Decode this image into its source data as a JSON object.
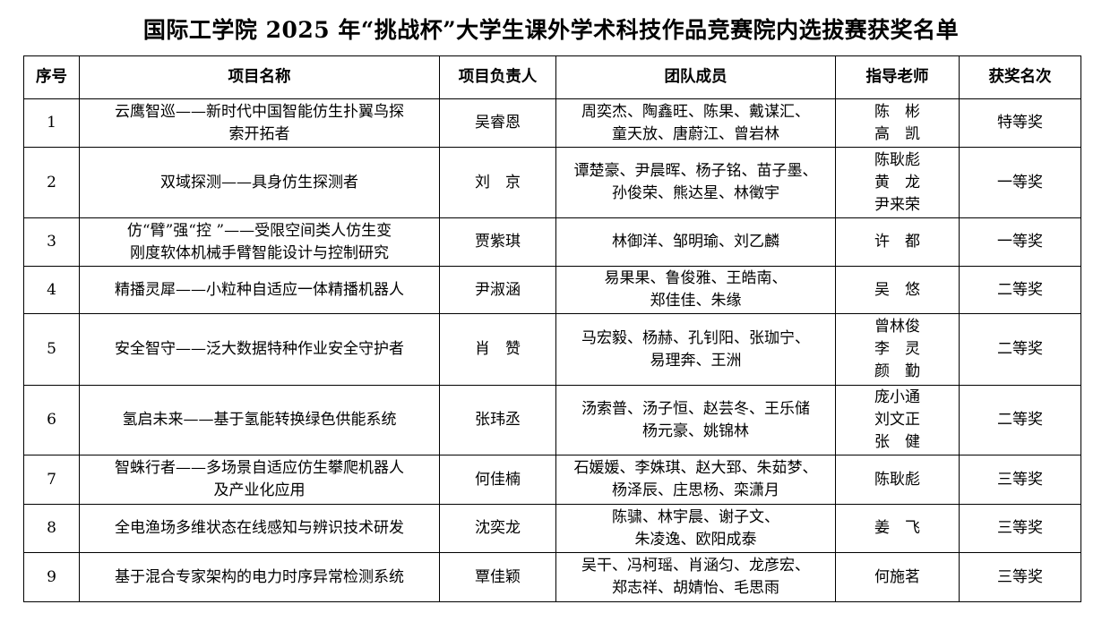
{
  "title": "国际工学院 2025 年“挑战杯”大学生课外学术科技作品竞赛院内选拔赛获奖名单",
  "headers": [
    "序号",
    "项目名称",
    "项目负责人",
    "团队成员",
    "指导老师",
    "获奖名次"
  ],
  "rows": [
    {
      "no": "1",
      "project": "云鹰智巡——新时代中国智能仿生扑翼鸟探\n索开拓者",
      "leader": "吴睿恩",
      "team": "周奕杰、陶鑫旺、陈果、戴谋汇、\n童天放、唐蔚江、曾岩林",
      "advisor": "陈　彬\n高　凯",
      "award": "特等奖"
    },
    {
      "no": "2",
      "project": "双域探测——具身仿生探测者",
      "leader": "刘　京",
      "team": "谭楚豪、尹晨晖、杨子铭、苗子墨、\n孙俊荣、熊达星、林徵宇",
      "advisor": "陈耿彪\n黄　龙\n尹来荣",
      "award": "一等奖"
    },
    {
      "no": "3",
      "project": "仿“臂”强“控 ”——受限空间类人仿生变\n刚度软体机械手臂智能设计与控制研究",
      "leader": "贾紫琪",
      "team": "林御洋、邹明瑜、刘乙麟",
      "advisor": "许　都",
      "award": "一等奖"
    },
    {
      "no": "4",
      "project": "精播灵犀——小粒种自适应一体精播机器人",
      "leader": "尹淑涵",
      "team": "易果果、鲁俊雅、王皓南、\n郑佳佳、朱缘",
      "advisor": "吴　悠",
      "award": "二等奖"
    },
    {
      "no": "5",
      "project": "安全智守——泛大数据特种作业安全守护者",
      "leader": "肖　赞",
      "team": "马宏毅、杨赫、孔钊阳、张珈宁、\n易理奔、王洲",
      "advisor": "曾林俊\n李　灵\n颜　勤",
      "award": "二等奖"
    },
    {
      "no": "6",
      "project": "氢启未来——基于氢能转换绿色供能系统",
      "leader": "张玮丞",
      "team": "汤索普、汤子恒、赵芸冬、王乐储\n杨元豪、姚锦林",
      "advisor": "庞小通\n刘文正\n张　健",
      "award": "二等奖"
    },
    {
      "no": "7",
      "project": "智蛛行者——多场景自适应仿生攀爬机器人\n及产业化应用",
      "leader": "何佳楠",
      "team": "石媛媛、李姝琪、赵大郅、朱茹梦、\n杨泽辰、庄思杨、栾潇月",
      "advisor": "陈耿彪",
      "award": "三等奖"
    },
    {
      "no": "8",
      "project": "全电渔场多维状态在线感知与辨识技术研发",
      "leader": "沈奕龙",
      "team": "陈骕、林宇晨、谢子文、\n朱凌逸、欧阳成泰",
      "advisor": "姜　飞",
      "award": "三等奖"
    },
    {
      "no": "9",
      "project": "基于混合专家架构的电力时序异常检测系统",
      "leader": "覃佳颖",
      "team": "吴干、冯柯瑶、肖涵匀、龙彦宏、\n郑志祥、胡婧怡、毛思雨",
      "advisor": "何施茗",
      "award": "三等奖"
    }
  ]
}
